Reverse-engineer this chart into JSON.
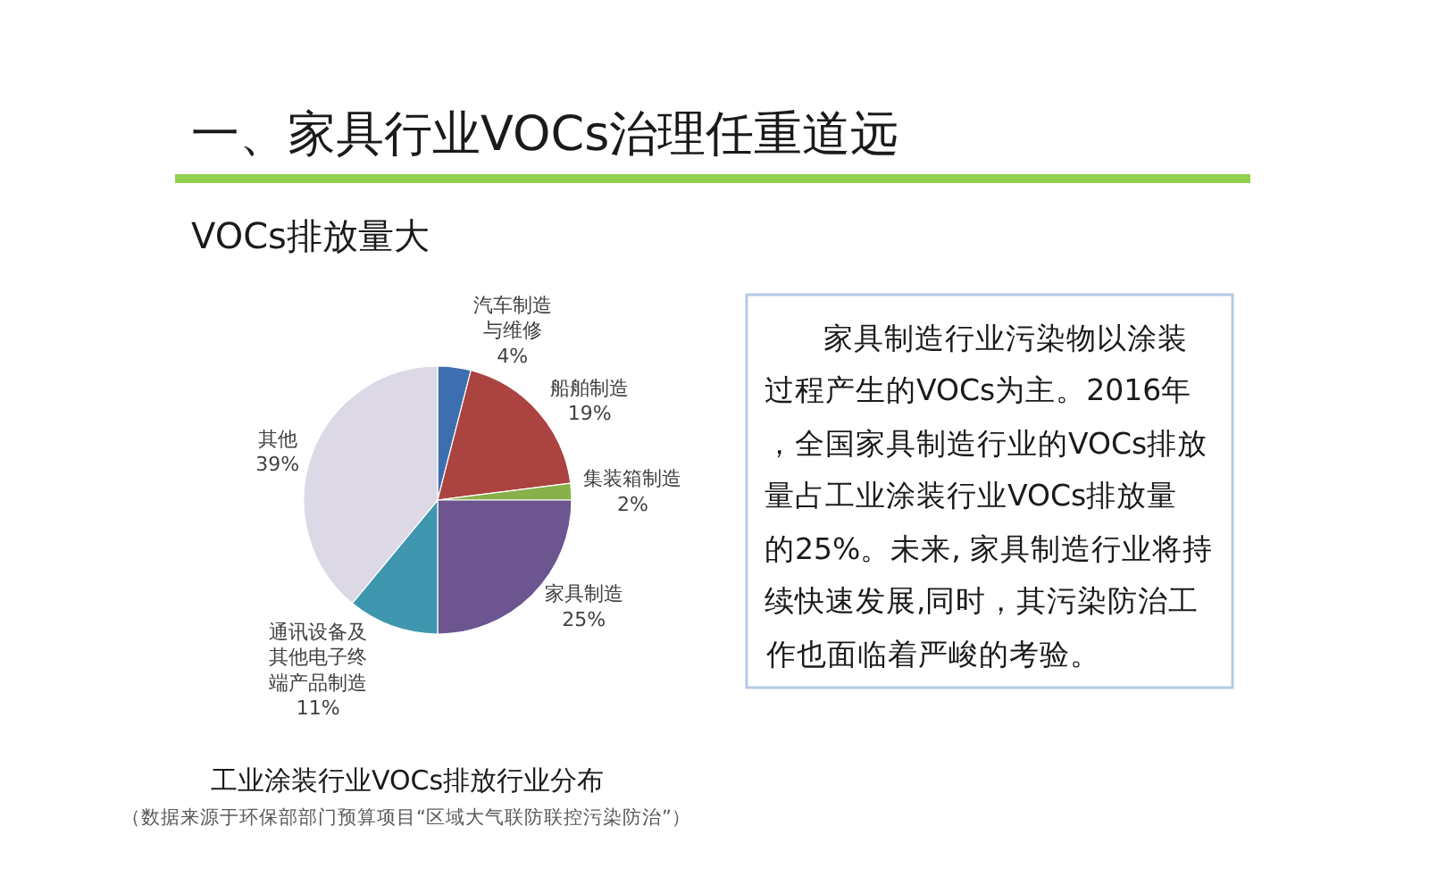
{
  "chart_data": [
    {
      "type": "other",
      "title": "一、家具行业VOCs治理任重道远",
      "subtitle": "VOCs排放量大"
    },
    {
      "type": "pie",
      "title": "工业涂装行业VOCs排放行业分布",
      "categories": [
        "汽车制造与维修",
        "船舶制造",
        "集装箱制造",
        "家具制造",
        "通讯设备及其他电子终端产品制造",
        "其他"
      ],
      "values": [
        4,
        19,
        2,
        25,
        11,
        39
      ],
      "value_labels": [
        "4%",
        "19%",
        "2%",
        "25%",
        "11%",
        "39%"
      ],
      "colors": [
        "#3d6fb0",
        "#ab4340",
        "#88b04b",
        "#6d5590",
        "#3e97ae",
        "#dcd8e6"
      ],
      "annotations": [
        "（数据来源于环保部部门预算项目“区域大气联防联控污染防治”）"
      ]
    },
    {
      "type": "other",
      "annotations": [
        "家具制造行业污染物以涂装",
        "过程产生的VOCs为主。2016年",
        "，全国家具制造行业的VOCs排放",
        "量占工业涂装行业VOCs排放量",
        "的25%。未来, 家具制造行业将持",
        "续快速发展,同时，其污染防治工",
        "作也面临着严峻的考验。"
      ]
    }
  ]
}
